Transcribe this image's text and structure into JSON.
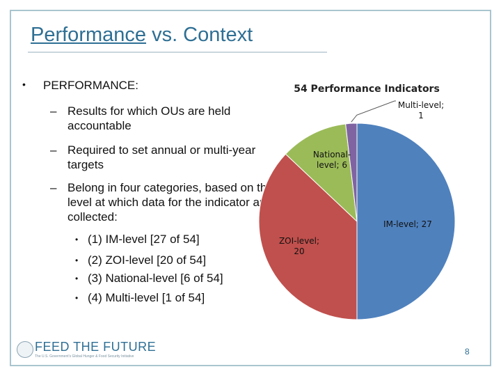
{
  "slide": {
    "title_part1": "Performance",
    "title_part2": " vs. Context",
    "page_number": "8"
  },
  "bullets": {
    "main": "PERFORMANCE:",
    "sub": [
      "Results for which OUs are held accountable",
      "Required to set annual or multi-year targets",
      "Belong in four categories, based on the level at which data for the indicator are collected:"
    ],
    "items": [
      "(1) IM-level [27 of 54]",
      "(2) ZOI-level [20 of 54]",
      "(3) National-level [6 of 54]",
      "(4)  Multi-level [1 of 54]"
    ]
  },
  "logo": {
    "name": "FEED THE FUTURE",
    "tagline": "The U.S. Government's Global Hunger & Food Security Initiative"
  },
  "chart_data": {
    "type": "pie",
    "title": "54 Performance Indicators",
    "categories": [
      "IM-level",
      "ZOI-level",
      "National-level",
      "Multi-level"
    ],
    "values": [
      27,
      20,
      6,
      1
    ],
    "data_labels": [
      "IM-level; 27",
      "ZOI-level; 20",
      "National-level; 6",
      "Multi-level; 1"
    ],
    "colors": [
      "#4f81bd",
      "#c0504d",
      "#9bbb59",
      "#8064a2"
    ],
    "start": "top",
    "direction": "clockwise",
    "legend": "none"
  }
}
